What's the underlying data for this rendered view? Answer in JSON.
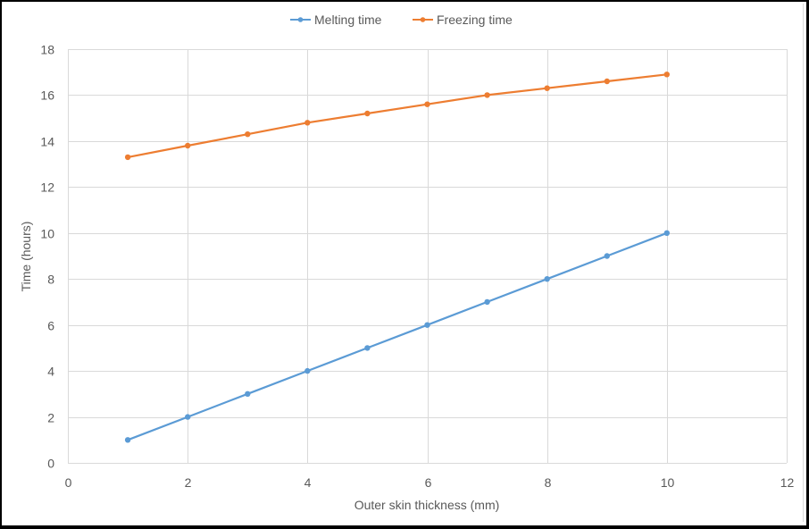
{
  "chart_data": {
    "type": "line",
    "title": "",
    "xlabel": "Outer skin thickness (mm)",
    "ylabel": "Time (hours)",
    "xlim": [
      0,
      12
    ],
    "ylim": [
      0,
      18
    ],
    "x_ticks": [
      0,
      2,
      4,
      6,
      8,
      10,
      12
    ],
    "y_ticks": [
      0,
      2,
      4,
      6,
      8,
      10,
      12,
      14,
      16,
      18
    ],
    "grid": true,
    "legend_position": "top",
    "x": [
      1,
      2,
      3,
      4,
      5,
      6,
      7,
      8,
      9,
      10
    ],
    "series": [
      {
        "name": "Melting time",
        "color": "#5b9bd5",
        "marker": "circle",
        "values": [
          1,
          2,
          3,
          4,
          5,
          6,
          7,
          8,
          9,
          10
        ]
      },
      {
        "name": "Freezing time",
        "color": "#ed7d31",
        "marker": "circle",
        "values": [
          13.3,
          13.8,
          14.3,
          14.8,
          15.2,
          15.6,
          16.0,
          16.3,
          16.6,
          16.9
        ]
      }
    ]
  },
  "legend": {
    "items": [
      {
        "label": "Melting time",
        "color": "#5b9bd5"
      },
      {
        "label": "Freezing time",
        "color": "#ed7d31"
      }
    ]
  },
  "axes": {
    "x_title": "Outer skin thickness (mm)",
    "y_title": "Time (hours)"
  },
  "style": {
    "gridline_color": "#d9d9d9",
    "text_color": "#595959",
    "frame_color": "#000000"
  }
}
